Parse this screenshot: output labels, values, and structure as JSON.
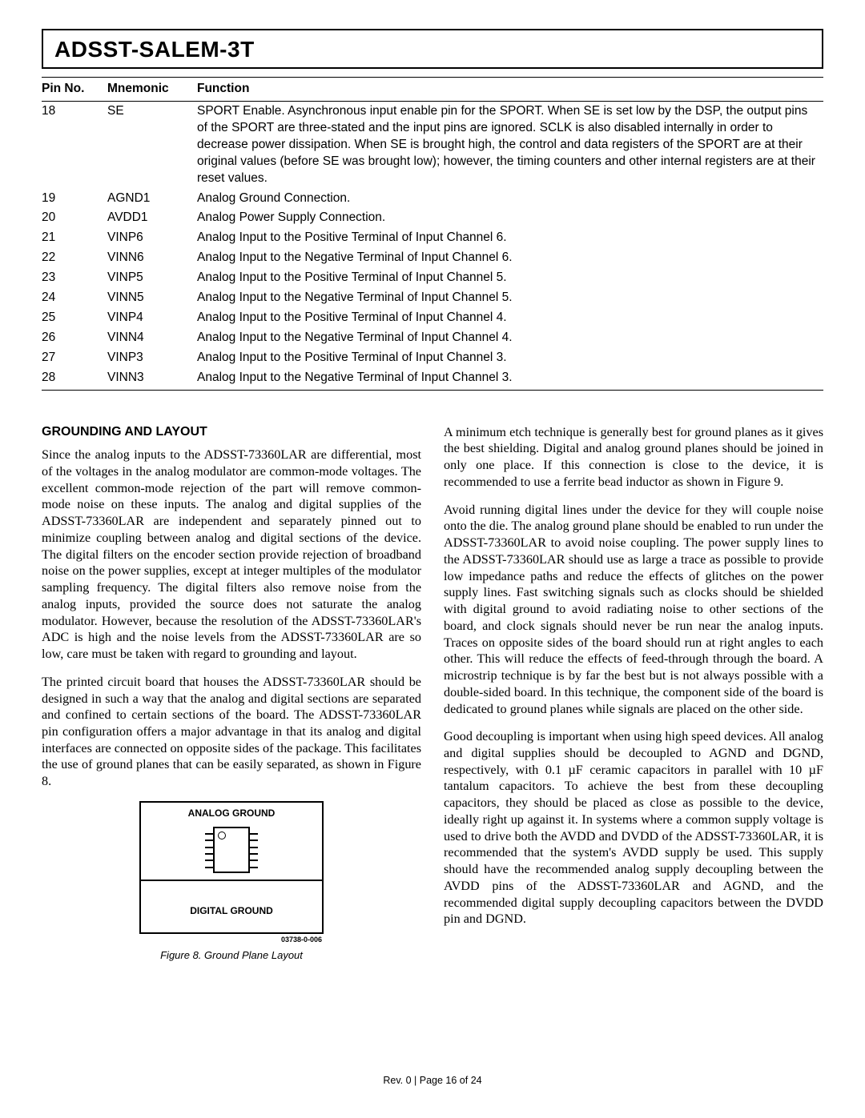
{
  "header": {
    "title": "ADSST-SALEM-3T"
  },
  "table": {
    "headers": {
      "pin": "Pin No.",
      "mnem": "Mnemonic",
      "func": "Function"
    },
    "rows": [
      {
        "pin": "18",
        "mnem": "SE",
        "func": "SPORT Enable. Asynchronous input enable pin for the SPORT. When SE is set low by the DSP, the output pins of the SPORT are three-stated and the input pins are ignored. SCLK is also disabled internally in order to decrease power dissipation. When SE is brought high, the control and data registers of the SPORT are at their original values (before SE was brought low); however, the timing counters and other internal registers are at their reset values."
      },
      {
        "pin": "19",
        "mnem": "AGND1",
        "func": "Analog Ground Connection."
      },
      {
        "pin": "20",
        "mnem": "AVDD1",
        "func": "Analog Power Supply Connection."
      },
      {
        "pin": "21",
        "mnem": "VINP6",
        "func": "Analog Input to the Positive Terminal of Input Channel 6."
      },
      {
        "pin": "22",
        "mnem": "VINN6",
        "func": "Analog Input to the Negative Terminal of Input Channel 6."
      },
      {
        "pin": "23",
        "mnem": "VINP5",
        "func": "Analog Input to the Positive Terminal of Input Channel 5."
      },
      {
        "pin": "24",
        "mnem": "VINN5",
        "func": "Analog Input to the Negative Terminal of Input Channel 5."
      },
      {
        "pin": "25",
        "mnem": "VINP4",
        "func": "Analog Input to the Positive Terminal of Input Channel 4."
      },
      {
        "pin": "26",
        "mnem": "VINN4",
        "func": "Analog Input to the Negative Terminal of Input Channel 4."
      },
      {
        "pin": "27",
        "mnem": "VINP3",
        "func": "Analog Input to the Positive Terminal of Input Channel 3."
      },
      {
        "pin": "28",
        "mnem": "VINN3",
        "func": "Analog Input to the Negative Terminal of Input Channel 3."
      }
    ]
  },
  "section": {
    "title": "GROUNDING AND LAYOUT"
  },
  "left": {
    "p1": "Since the analog inputs to the ADSST-73360LAR are differential, most of the voltages in the analog modulator are common-mode voltages. The excellent common-mode rejection of the part will remove common-mode noise on these inputs. The analog and digital supplies of the ADSST-73360LAR are independent and separately pinned out to minimize coupling between analog and digital sections of the device. The digital filters on the encoder section provide rejection of broadband noise on the power supplies, except at integer multiples of the modulator sampling frequency. The digital filters also remove noise from the analog inputs, provided the source does not saturate the analog modulator. However, because the resolution of the ADSST-73360LAR's ADC is high and the noise levels from the ADSST-73360LAR are so low, care must be taken with regard to grounding and layout.",
    "p2": "The printed circuit board that houses the ADSST-73360LAR should be designed in such a way that the analog and digital sections are separated and confined to certain sections of the board. The ADSST-73360LAR pin configuration offers a major advantage in that its analog and digital interfaces are connected on opposite sides of the package. This facilitates the use of ground planes that can be easily separated, as shown in Figure 8."
  },
  "figure": {
    "top_label": "ANALOG GROUND",
    "bot_label": "DIGITAL GROUND",
    "code": "03738-0-006",
    "caption": "Figure 8. Ground Plane Layout"
  },
  "right": {
    "p1": "A minimum etch technique is generally best for ground planes as it gives the best shielding. Digital and analog ground planes should be joined in only one place. If this connection is close to the device, it is recommended to use a ferrite bead inductor as shown in Figure 9.",
    "p2": "Avoid running digital lines under the device for they will couple noise onto the die. The analog ground plane should be enabled to run under the ADSST-73360LAR to avoid noise coupling. The power supply lines to the ADSST-73360LAR should use as large a trace as possible to provide low impedance paths and reduce the effects of glitches on the power supply lines. Fast switching signals such as clocks should be shielded with digital ground to avoid radiating noise to other sections of the board, and clock signals should never be run near the analog inputs. Traces on opposite sides of the board should run at right angles to each other. This will reduce the effects of feed-through through the board. A microstrip technique is by far the best but is not always possible with a double-sided board. In this technique, the component side of the board is dedicated to ground planes while signals are placed on the other side.",
    "p3": "Good decoupling is important when using high speed devices. All analog and digital supplies should be decoupled to AGND and DGND, respectively, with 0.1 µF ceramic capacitors in parallel with 10 µF tantalum capacitors. To achieve the best from these decoupling capacitors, they should be placed as close as possible to the device, ideally right up against it. In systems where a common supply voltage is used to drive both the AVDD and DVDD of the ADSST-73360LAR, it is recommended that the system's AVDD supply be used. This supply should have the recommended analog supply decoupling between the AVDD pins of the ADSST-73360LAR and AGND, and the recommended digital supply decoupling capacitors between the DVDD pin and DGND."
  },
  "footer": {
    "text": "Rev. 0 | Page 16 of 24"
  }
}
